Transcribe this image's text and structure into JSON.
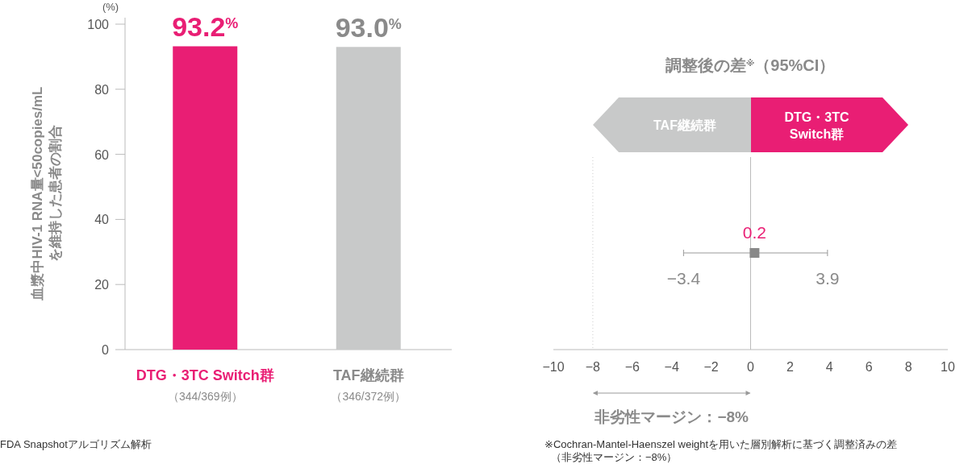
{
  "chart_data": [
    {
      "type": "bar",
      "ylabel": "血漿中HIV-1 RNA量<50copies/mL\nを維持した患者の割合",
      "categories": [
        "DTG・3TC Switch群",
        "TAF継続群"
      ],
      "values": [
        93.2,
        93.0
      ],
      "colors": [
        "#e91e74",
        "#c8c9c9"
      ],
      "value_labels": [
        "93.2$^{%}$",
        "93.0$^{%}$"
      ],
      "ylim": [
        0,
        102
      ],
      "yticks": [
        0,
        20,
        40,
        60,
        80,
        100
      ],
      "annotations": [
        "(%)",
        "（344/369例）",
        "（346/372例）",
        "FDA Snapshotアルゴリズム解析"
      ]
    },
    {
      "type": "scatter",
      "title": "調整後の差$^{※}$（95%CI）",
      "orientation": "horizontal",
      "marker": "square",
      "categories": [
        null
      ],
      "values": [
        0.2
      ],
      "color": "#888888",
      "data_labels": true,
      "errors": [
        [
          -3.4,
          3.9
        ]
      ],
      "xlim": [
        -10,
        10
      ],
      "xticks": [
        {
          "value": -10,
          "label": "−10"
        },
        {
          "value": -8,
          "label": "−8"
        },
        {
          "value": -6,
          "label": "−6"
        },
        {
          "value": -4,
          "label": "−4"
        },
        {
          "value": -2,
          "label": "−2"
        },
        0,
        2,
        4,
        6,
        8,
        10
      ],
      "ref_lines": [
        {
          "axis": "x",
          "value": 0,
          "color": "#bbbbbb",
          "line_style": "solid"
        },
        {
          "axis": "x",
          "value": -8,
          "color": "#cccccc",
          "line_style": "dotted"
        }
      ],
      "annotations": [
        "TAF継続群",
        "DTG・3TC\nSwitch群",
        "−3.4",
        "3.9",
        "非劣性マージン：−8%",
        "※Cochran-Mantel-Haenszel weightを用いた層別解析に基づく調整済みの差",
        "（非劣性マージン：−8%）"
      ]
    }
  ]
}
